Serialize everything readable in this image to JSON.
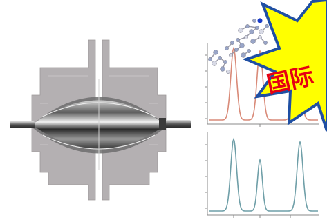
{
  "burst": {
    "text": "国际",
    "fill_color": "#ffff00",
    "edge_color": "#1f4fa3",
    "text_color": "#e60012"
  },
  "trap_illustration": {
    "electrode_color": "#b4b0b2",
    "trap_color": "#8a8a8a"
  },
  "spectrum_top": {
    "line_color": "#d98a78",
    "peak_count": 3
  },
  "spectrum_bottom": {
    "line_color": "#6f9fa8",
    "peak_count": 3
  },
  "molecule": {
    "atom_color": "#9aa6c8",
    "highlight_color": "#1a3cc8"
  }
}
